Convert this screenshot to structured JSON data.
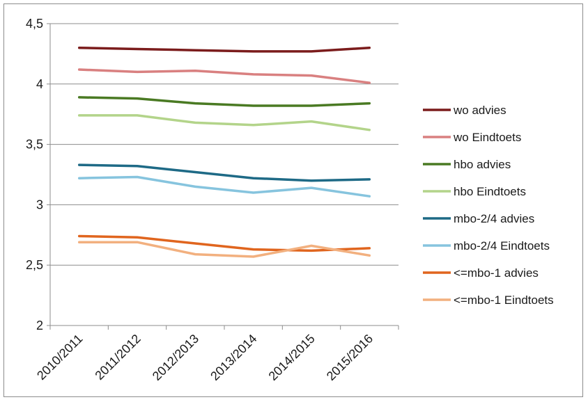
{
  "chart_data": {
    "type": "line",
    "categories": [
      "2010/2011",
      "2011/2012",
      "2012/2013",
      "2013/2014",
      "2014/2015",
      "2015/2016"
    ],
    "ylim": [
      2,
      4.5
    ],
    "yticks": [
      "2",
      "2,5",
      "3",
      "3,5",
      "4",
      "4,5"
    ],
    "ytick_values": [
      2,
      2.5,
      3,
      3.5,
      4,
      4.5
    ],
    "grid": true,
    "legend_position": "right",
    "series": [
      {
        "name": "wo advies",
        "color": "#7b1c1c",
        "values": [
          4.3,
          4.29,
          4.28,
          4.27,
          4.27,
          4.3
        ]
      },
      {
        "name": "wo Eindtoets",
        "color": "#d98080",
        "values": [
          4.12,
          4.1,
          4.11,
          4.08,
          4.07,
          4.01
        ]
      },
      {
        "name": "hbo advies",
        "color": "#4a7a23",
        "values": [
          3.89,
          3.88,
          3.84,
          3.82,
          3.82,
          3.84
        ]
      },
      {
        "name": "hbo Eindtoets",
        "color": "#b3d48a",
        "values": [
          3.74,
          3.74,
          3.68,
          3.66,
          3.69,
          3.62
        ]
      },
      {
        "name": "mbo-2/4 advies",
        "color": "#1e6a86",
        "values": [
          3.33,
          3.32,
          3.27,
          3.22,
          3.2,
          3.21
        ]
      },
      {
        "name": "mbo-2/4 Eindtoets",
        "color": "#86c4de",
        "values": [
          3.22,
          3.23,
          3.15,
          3.1,
          3.14,
          3.07
        ]
      },
      {
        "name": "<=mbo-1 advies",
        "color": "#e0651e",
        "values": [
          2.74,
          2.73,
          2.68,
          2.63,
          2.62,
          2.64
        ]
      },
      {
        "name": "<=mbo-1 Eindtoets",
        "color": "#f2b07f",
        "values": [
          2.69,
          2.69,
          2.59,
          2.57,
          2.66,
          2.58
        ]
      }
    ]
  }
}
